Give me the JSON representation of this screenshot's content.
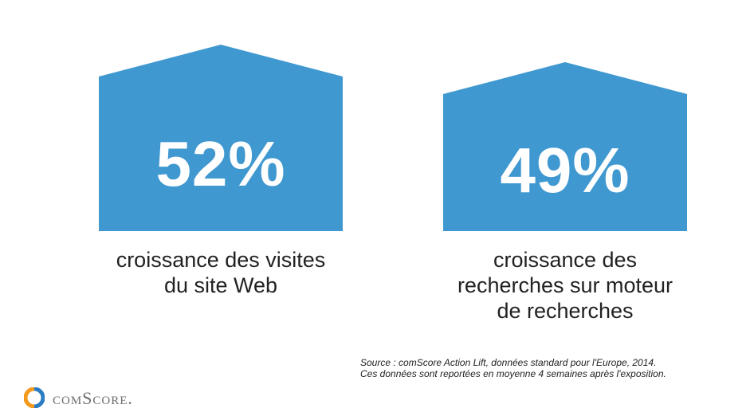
{
  "chart_data": [
    {
      "type": "infographic",
      "value": "52%",
      "caption": [
        "croissance des visites",
        "du site Web"
      ]
    },
    {
      "type": "infographic",
      "value": "49%",
      "caption": [
        "croissance des",
        "recherches sur moteur",
        "de recherches"
      ]
    }
  ],
  "colors": {
    "accent": "#3f98d0",
    "text": "#222222",
    "logo_gray": "#6b6e70",
    "logo_blue": "#2b7cc2",
    "logo_orange": "#f39a1e"
  },
  "source": [
    "Source : comScore Action Lift, données standard pour l'Europe, 2014.",
    "Ces données sont reportées en moyenne 4 semaines après l'exposition."
  ],
  "logo": {
    "text": "comScore."
  }
}
